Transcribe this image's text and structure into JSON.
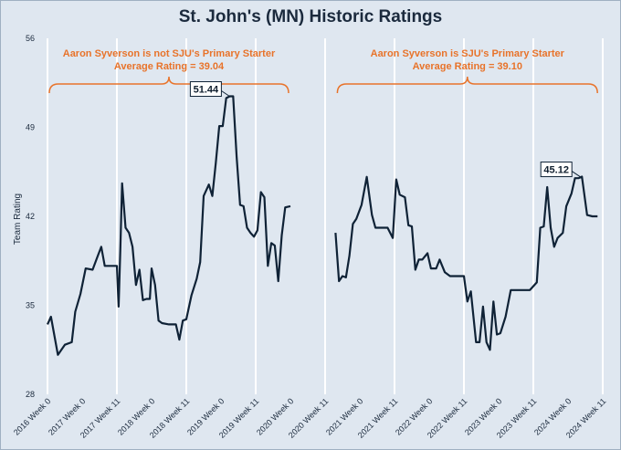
{
  "chart_data": {
    "type": "line",
    "title": "St. John's (MN) Historic Ratings",
    "ylabel": "Team Rating",
    "ylim": [
      28,
      56
    ],
    "yticks": [
      28,
      35,
      42,
      49,
      56
    ],
    "xticks": [
      "2016 Week 0",
      "2017 Week 0",
      "2017 Week 11",
      "2018 Week 0",
      "2018 Week 11",
      "2019 Week 0",
      "2019 Week 11",
      "2020 Week 0",
      "2020 Week 11",
      "2021 Week 0",
      "2021 Week 11",
      "2022 Week 0",
      "2022 Week 11",
      "2023 Week 0",
      "2023 Week 11",
      "2024 Week 0",
      "2024 Week 11"
    ],
    "series": [
      {
        "segment": "first",
        "points": [
          [
            0,
            33.5
          ],
          [
            0.1,
            34.1
          ],
          [
            0.3,
            31.1
          ],
          [
            0.5,
            31.9
          ],
          [
            0.7,
            32.1
          ],
          [
            0.8,
            34.5
          ],
          [
            0.95,
            35.9
          ],
          [
            1.1,
            37.9
          ],
          [
            1.3,
            37.8
          ],
          [
            1.45,
            38.9
          ],
          [
            1.55,
            39.6
          ],
          [
            1.65,
            38.1
          ],
          [
            1.8,
            38.1
          ],
          [
            2.0,
            38.1
          ],
          [
            2.05,
            34.9
          ],
          [
            2.1,
            39.5
          ],
          [
            2.15,
            44.6
          ],
          [
            2.25,
            41.1
          ],
          [
            2.35,
            40.7
          ],
          [
            2.45,
            39.6
          ],
          [
            2.55,
            36.6
          ],
          [
            2.65,
            37.8
          ],
          [
            2.75,
            35.4
          ],
          [
            2.85,
            35.5
          ],
          [
            2.95,
            35.5
          ],
          [
            3.0,
            37.9
          ],
          [
            3.1,
            36.6
          ],
          [
            3.2,
            33.8
          ],
          [
            3.3,
            33.6
          ],
          [
            3.5,
            33.5
          ],
          [
            3.7,
            33.5
          ],
          [
            3.8,
            32.3
          ],
          [
            3.9,
            33.8
          ],
          [
            4.0,
            33.9
          ],
          [
            4.15,
            35.8
          ],
          [
            4.3,
            37.1
          ],
          [
            4.4,
            38.4
          ],
          [
            4.5,
            43.6
          ],
          [
            4.65,
            44.5
          ],
          [
            4.75,
            43.6
          ],
          [
            4.85,
            46.2
          ],
          [
            4.95,
            49.1
          ],
          [
            5.05,
            49.1
          ],
          [
            5.15,
            51.3
          ],
          [
            5.25,
            51.44
          ],
          [
            5.35,
            51.44
          ],
          [
            5.45,
            46.7
          ],
          [
            5.55,
            42.9
          ],
          [
            5.65,
            42.8
          ],
          [
            5.75,
            41.1
          ],
          [
            5.85,
            40.7
          ],
          [
            5.95,
            40.4
          ],
          [
            6.05,
            40.9
          ],
          [
            6.15,
            43.9
          ],
          [
            6.25,
            43.5
          ],
          [
            6.35,
            38.1
          ],
          [
            6.45,
            39.9
          ],
          [
            6.55,
            39.7
          ],
          [
            6.65,
            36.9
          ],
          [
            6.75,
            40.5
          ],
          [
            6.85,
            42.7
          ],
          [
            7.0,
            42.8
          ]
        ]
      },
      {
        "segment": "second",
        "points": [
          [
            8.3,
            40.7
          ],
          [
            8.4,
            36.9
          ],
          [
            8.5,
            37.3
          ],
          [
            8.6,
            37.2
          ],
          [
            8.7,
            38.9
          ],
          [
            8.8,
            41.4
          ],
          [
            8.9,
            41.8
          ],
          [
            9.05,
            42.9
          ],
          [
            9.2,
            45.1
          ],
          [
            9.35,
            42.1
          ],
          [
            9.45,
            41.1
          ],
          [
            9.6,
            41.1
          ],
          [
            9.8,
            41.1
          ],
          [
            9.95,
            40.3
          ],
          [
            10.05,
            44.9
          ],
          [
            10.15,
            43.7
          ],
          [
            10.3,
            43.5
          ],
          [
            10.4,
            41.3
          ],
          [
            10.5,
            41.2
          ],
          [
            10.6,
            37.8
          ],
          [
            10.7,
            38.6
          ],
          [
            10.8,
            38.6
          ],
          [
            10.95,
            39.1
          ],
          [
            11.05,
            37.9
          ],
          [
            11.2,
            37.9
          ],
          [
            11.3,
            38.6
          ],
          [
            11.45,
            37.6
          ],
          [
            11.6,
            37.3
          ],
          [
            11.8,
            37.3
          ],
          [
            12.0,
            37.3
          ],
          [
            12.1,
            35.3
          ],
          [
            12.2,
            36.1
          ],
          [
            12.35,
            32.1
          ],
          [
            12.45,
            32.1
          ],
          [
            12.55,
            34.9
          ],
          [
            12.65,
            32.1
          ],
          [
            12.75,
            31.5
          ],
          [
            12.85,
            35.3
          ],
          [
            12.95,
            32.7
          ],
          [
            13.05,
            32.8
          ],
          [
            13.2,
            34.1
          ],
          [
            13.35,
            36.2
          ],
          [
            13.5,
            36.2
          ],
          [
            13.7,
            36.2
          ],
          [
            13.9,
            36.2
          ],
          [
            14.1,
            36.8
          ],
          [
            14.2,
            41.1
          ],
          [
            14.3,
            41.2
          ],
          [
            14.4,
            44.3
          ],
          [
            14.5,
            41.1
          ],
          [
            14.6,
            39.6
          ],
          [
            14.7,
            40.3
          ],
          [
            14.85,
            40.7
          ],
          [
            14.95,
            42.8
          ],
          [
            15.1,
            43.8
          ],
          [
            15.2,
            45.0
          ],
          [
            15.3,
            45.0
          ],
          [
            15.4,
            45.12
          ],
          [
            15.55,
            42.1
          ],
          [
            15.7,
            42.0
          ],
          [
            15.85,
            42.0
          ]
        ]
      }
    ],
    "annotations": [
      {
        "text_line1": "Aaron Syverson is not SJU's Primary Starter",
        "text_line2": "Average Rating = 39.04",
        "x_from": 0,
        "x_to": 7.0
      },
      {
        "text_line1": "Aaron Syverson is SJU's Primary Starter",
        "text_line2": "Average Rating = 39.10",
        "x_from": 8.3,
        "x_to": 15.9
      }
    ],
    "callouts": [
      {
        "label": "51.44",
        "x": 5.3,
        "y": 51.44
      },
      {
        "label": "45.12",
        "x": 15.4,
        "y": 45.12
      }
    ],
    "grid": "vertical",
    "colors": {
      "line": "#0f2236",
      "annotation": "#e8732a",
      "background": "#dfe7f0",
      "grid": "#ffffff"
    }
  }
}
